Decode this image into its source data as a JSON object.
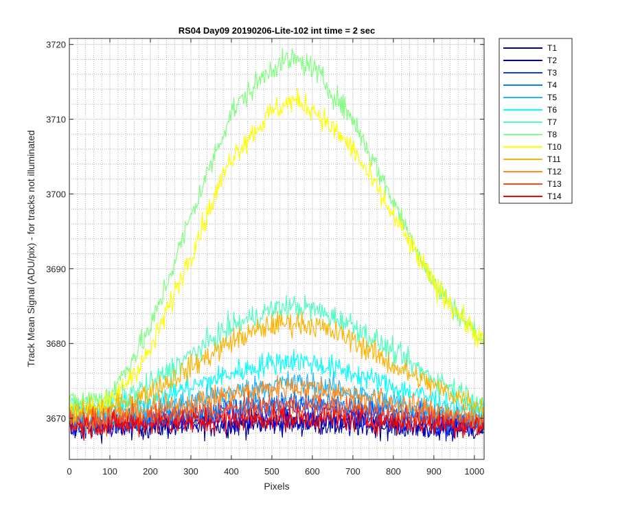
{
  "chart_data": {
    "type": "line",
    "title": "RS04 Day09 20190206-Lite-102 int time = 2 sec",
    "xlabel": "Pixels",
    "ylabel": "Track Mean Signal (ADU/pix) - for tracks not illuminated",
    "xlim": [
      0,
      1024
    ],
    "ylim": [
      3664.5,
      3720.8
    ],
    "xticks": [
      0,
      100,
      200,
      300,
      400,
      500,
      600,
      700,
      800,
      900,
      1000
    ],
    "xtick_labels": [
      "0",
      "100",
      "200",
      "300",
      "400",
      "500",
      "600",
      "700",
      "800",
      "900",
      "1000"
    ],
    "yticks": [
      3670,
      3680,
      3690,
      3700,
      3710,
      3720
    ],
    "ytick_labels": [
      "3670",
      "3680",
      "3690",
      "3700",
      "3710",
      "3720"
    ],
    "grid": true,
    "minor_grid": true,
    "legend_position": "outside-right",
    "x_sample": [
      0,
      100,
      200,
      300,
      400,
      500,
      550,
      600,
      700,
      800,
      900,
      1024
    ],
    "series": [
      {
        "name": "T1",
        "color": "#00008f",
        "values": [
          3668.5,
          3668.8,
          3668.8,
          3668.9,
          3669.1,
          3669.3,
          3669.3,
          3669.3,
          3669.1,
          3668.9,
          3668.7,
          3668.5
        ]
      },
      {
        "name": "T2",
        "color": "#0000d6",
        "values": [
          3668.8,
          3669.0,
          3669.1,
          3669.3,
          3669.5,
          3669.8,
          3669.8,
          3669.7,
          3669.5,
          3669.2,
          3669.0,
          3668.8
        ]
      },
      {
        "name": "T3",
        "color": "#0a3cf5",
        "values": [
          3669.2,
          3669.5,
          3669.8,
          3670.3,
          3670.9,
          3671.4,
          3671.5,
          3671.3,
          3670.9,
          3670.3,
          3669.8,
          3669.2
        ]
      },
      {
        "name": "T4",
        "color": "#0080ff",
        "values": [
          3669.5,
          3669.8,
          3670.3,
          3670.9,
          3671.5,
          3672.0,
          3672.2,
          3672.0,
          3671.5,
          3670.9,
          3670.2,
          3669.5
        ]
      },
      {
        "name": "T5",
        "color": "#1fb8ff",
        "values": [
          3670.0,
          3670.4,
          3671.2,
          3672.3,
          3673.5,
          3674.5,
          3674.8,
          3674.5,
          3673.5,
          3672.2,
          3671.0,
          3670.0
        ]
      },
      {
        "name": "T6",
        "color": "#00ffff",
        "values": [
          3670.8,
          3671.2,
          3672.5,
          3674.2,
          3676.0,
          3677.4,
          3677.8,
          3677.4,
          3676.0,
          3674.2,
          3672.5,
          3670.8
        ]
      },
      {
        "name": "T7",
        "color": "#4dffbe",
        "values": [
          3671.5,
          3672.0,
          3674.5,
          3678.5,
          3682.3,
          3684.5,
          3685.0,
          3684.6,
          3682.5,
          3678.8,
          3675.3,
          3672.0
        ]
      },
      {
        "name": "T8",
        "color": "#7fff80",
        "values": [
          3672.0,
          3673.0,
          3682.0,
          3697.0,
          3711.0,
          3717.0,
          3718.0,
          3717.0,
          3710.0,
          3699.0,
          3688.0,
          3680.0
        ]
      },
      {
        "name": "T10",
        "color": "#ffff00",
        "values": [
          3671.0,
          3672.0,
          3679.0,
          3692.0,
          3705.0,
          3711.0,
          3712.5,
          3711.5,
          3706.0,
          3697.0,
          3688.0,
          3680.0
        ]
      },
      {
        "name": "T11",
        "color": "#ffb300",
        "values": [
          3670.8,
          3671.2,
          3673.5,
          3676.8,
          3680.3,
          3682.5,
          3682.8,
          3682.5,
          3680.5,
          3677.0,
          3674.3,
          3671.5
        ]
      },
      {
        "name": "T12",
        "color": "#ff8c1a",
        "values": [
          3670.0,
          3670.4,
          3671.0,
          3672.0,
          3673.2,
          3674.0,
          3674.3,
          3674.0,
          3673.2,
          3672.0,
          3671.0,
          3670.0
        ]
      },
      {
        "name": "T13",
        "color": "#ff4a1a",
        "values": [
          3669.5,
          3669.7,
          3670.1,
          3670.6,
          3671.2,
          3671.6,
          3671.7,
          3671.6,
          3671.2,
          3670.6,
          3670.0,
          3669.5
        ]
      },
      {
        "name": "T14",
        "color": "#ff0000",
        "values": [
          3669.0,
          3669.1,
          3669.3,
          3669.5,
          3669.8,
          3670.0,
          3670.0,
          3670.0,
          3669.8,
          3669.5,
          3669.3,
          3669.0
        ]
      }
    ]
  }
}
